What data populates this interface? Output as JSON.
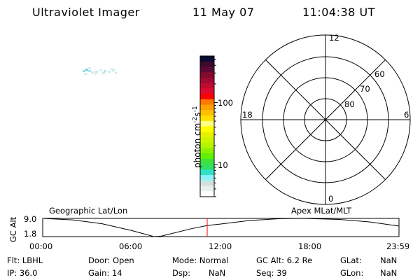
{
  "header": {
    "title": "Ultraviolet Imager",
    "date": "11 May 07",
    "time": "11:04:38 UT"
  },
  "colorbar": {
    "label": "photon cm",
    "label_exp1": "-2",
    "label_s": "s",
    "label_exp2": "-1",
    "scale": "log",
    "range": [
      3,
      565
    ],
    "ticks": [
      {
        "value": 100,
        "label": "100"
      },
      {
        "value": 10,
        "label": "10"
      }
    ],
    "colors_top_to_bottom": [
      "#0a0a32",
      "#3a0a2e",
      "#5a0a32",
      "#800a30",
      "#a00a30",
      "#c00a30",
      "#e00a30",
      "#ff0000",
      "#ff7800",
      "#ffa000",
      "#ffc000",
      "#ffe000",
      "#ffff80",
      "#ffff00",
      "#e8f000",
      "#d0f400",
      "#b4f400",
      "#8cf000",
      "#60f000",
      "#40e040",
      "#30e060",
      "#30e0c8",
      "#90f0f8",
      "#d0e0e0",
      "#e8f0ec",
      "#ffffff"
    ]
  },
  "polar": {
    "labels": {
      "top": "12",
      "left": "18",
      "right": "6",
      "bottom": "0"
    },
    "rings": [
      "80",
      "70",
      "60"
    ],
    "caption": "Apex MLat/MLT"
  },
  "orbit": {
    "left_caption": "Geographic Lat/Lon",
    "ylabel": "GC Alt",
    "yticks": [
      "9.0",
      "1.8"
    ],
    "xticks": [
      "00:00",
      "06:00",
      "12:00",
      "18:00",
      "23:59"
    ],
    "current_time_hours": 11.08,
    "marker_color": "#ff0000",
    "altitude_re": [
      [
        0,
        9.0
      ],
      [
        2,
        8.4
      ],
      [
        4,
        6.9
      ],
      [
        6,
        4.2
      ],
      [
        7.5,
        1.8
      ],
      [
        8,
        2.0
      ],
      [
        10,
        4.9
      ],
      [
        11.08,
        6.2
      ],
      [
        12,
        6.8
      ],
      [
        14,
        8.2
      ],
      [
        16,
        8.9
      ],
      [
        17.5,
        9.1
      ],
      [
        20,
        8.6
      ],
      [
        22,
        7.6
      ],
      [
        23.98,
        6.0
      ]
    ]
  },
  "status": {
    "flt": "Flt: LBHL",
    "door": "Door: Open",
    "mode": "Mode: Normal",
    "gc_alt": "GC Alt: 6.2 Re",
    "glat_label": "GLat:",
    "glat": "NaN",
    "ip": "IP: 36.0",
    "gain": "Gain: 14",
    "dsp_label": "Dsp:",
    "dsp": "NaN",
    "seq": "Seq: 39",
    "glon_label": "GLon:",
    "glon": "NaN"
  }
}
